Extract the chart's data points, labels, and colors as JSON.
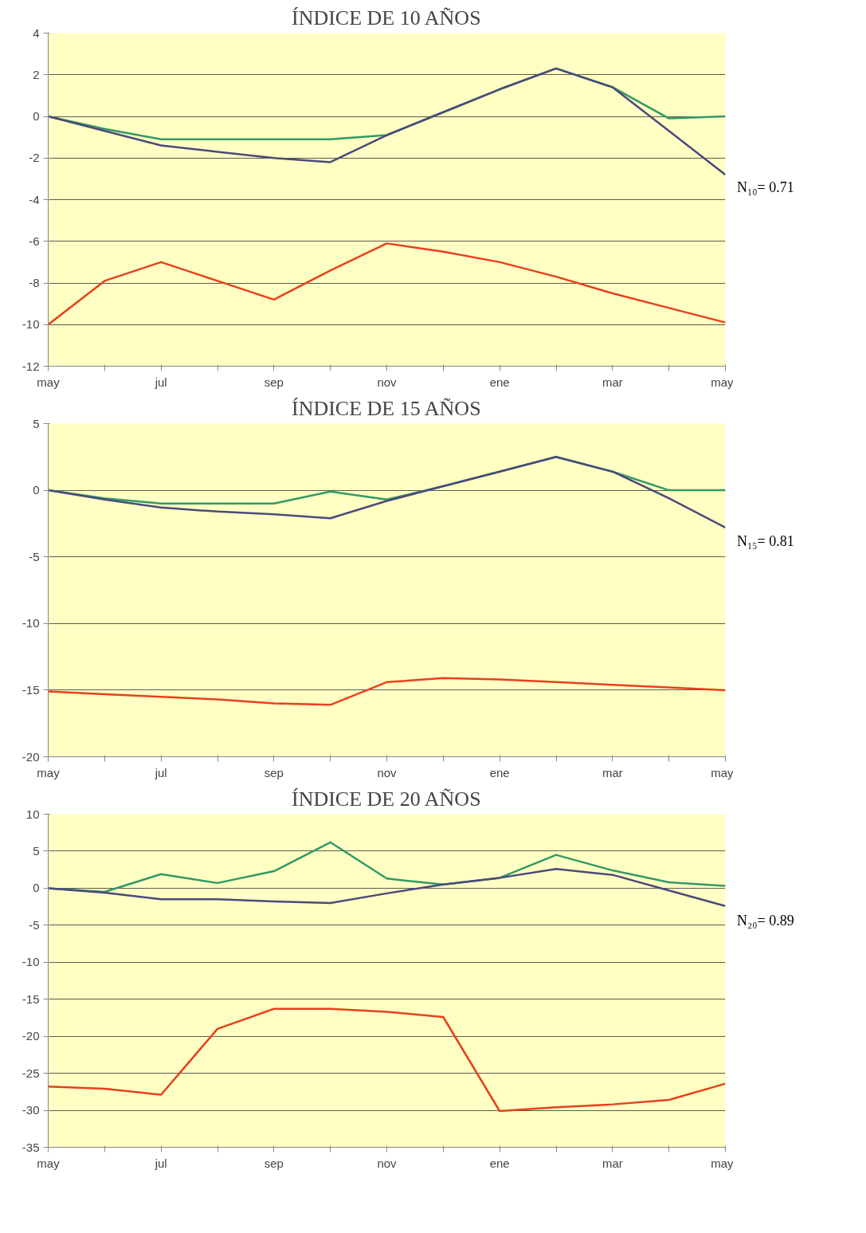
{
  "chart_data": [
    {
      "type": "line",
      "title": "ÍNDICE DE 10 AÑOS",
      "categories": [
        "may",
        null,
        "jul",
        null,
        "sep",
        null,
        "nov",
        null,
        "ene",
        null,
        "mar",
        null,
        "may"
      ],
      "ylim": [
        -12,
        4
      ],
      "yticks": [
        -12,
        -10,
        -8,
        -6,
        -4,
        -2,
        0,
        2,
        4
      ],
      "grid": "y",
      "annotations": [
        "N₁₀= 0.71"
      ],
      "series": [
        {
          "color": "#339966",
          "values": [
            0,
            -0.6,
            -1.1,
            -1.1,
            -1.1,
            -1.1,
            -0.9,
            0.2,
            1.3,
            2.3,
            1.4,
            -0.1,
            0
          ]
        },
        {
          "color": "#4b4a7a",
          "values": [
            0,
            -0.7,
            -1.4,
            -1.7,
            -2.0,
            -2.2,
            -0.9,
            0.2,
            1.3,
            2.3,
            1.4,
            -0.7,
            -2.8
          ]
        },
        {
          "color": "#e8401c",
          "values": [
            -10,
            -7.9,
            -7.0,
            -7.9,
            -8.8,
            -7.4,
            -6.1,
            -6.5,
            -7.0,
            -7.7,
            -8.5,
            -9.2,
            -9.9
          ]
        }
      ]
    },
    {
      "type": "line",
      "title": "ÍNDICE DE 15 AÑOS",
      "categories": [
        "may",
        null,
        "jul",
        null,
        "sep",
        null,
        "nov",
        null,
        "ene",
        null,
        "mar",
        null,
        "may"
      ],
      "ylim": [
        -20,
        5
      ],
      "yticks": [
        -20,
        -15,
        -10,
        -5,
        0,
        5
      ],
      "grid": "y",
      "annotations": [
        "N₁₅= 0.81"
      ],
      "series": [
        {
          "color": "#339966",
          "values": [
            0,
            -0.6,
            -1.0,
            -1.0,
            -1.0,
            -0.1,
            -0.7,
            0.3,
            1.4,
            2.5,
            1.4,
            0,
            0
          ]
        },
        {
          "color": "#4b4a7a",
          "values": [
            0,
            -0.7,
            -1.3,
            -1.6,
            -1.8,
            -2.1,
            -0.8,
            0.3,
            1.4,
            2.5,
            1.4,
            -0.6,
            -2.8
          ]
        },
        {
          "color": "#e8401c",
          "values": [
            -15.1,
            -15.3,
            -15.5,
            -15.7,
            -16.0,
            -16.1,
            -14.4,
            -14.1,
            -14.2,
            -14.4,
            -14.6,
            -14.8,
            -15.0
          ]
        }
      ]
    },
    {
      "type": "line",
      "title": "ÍNDICE DE 20 AÑOS",
      "categories": [
        "may",
        null,
        "jul",
        null,
        "sep",
        null,
        "nov",
        null,
        "ene",
        null,
        "mar",
        null,
        "may"
      ],
      "ylim": [
        -35,
        10
      ],
      "yticks": [
        -35,
        -30,
        -25,
        -20,
        -15,
        -10,
        -5,
        0,
        5,
        10
      ],
      "grid": "y",
      "annotations": [
        "N₂₀= 0.89"
      ],
      "series": [
        {
          "color": "#339966",
          "values": [
            0,
            -0.5,
            1.9,
            0.7,
            2.3,
            6.2,
            1.3,
            0.5,
            1.4,
            4.5,
            2.4,
            0.8,
            0.3
          ]
        },
        {
          "color": "#4b4a7a",
          "values": [
            0,
            -0.6,
            -1.5,
            -1.5,
            -1.8,
            -2.0,
            -0.7,
            0.5,
            1.4,
            2.6,
            1.8,
            -0.3,
            -2.4
          ]
        },
        {
          "color": "#e8401c",
          "values": [
            -26.8,
            -27.1,
            -27.9,
            -19.0,
            -16.3,
            -16.3,
            -16.7,
            -17.4,
            -30.1,
            -29.6,
            -29.2,
            -28.6,
            -26.4
          ]
        }
      ]
    }
  ]
}
